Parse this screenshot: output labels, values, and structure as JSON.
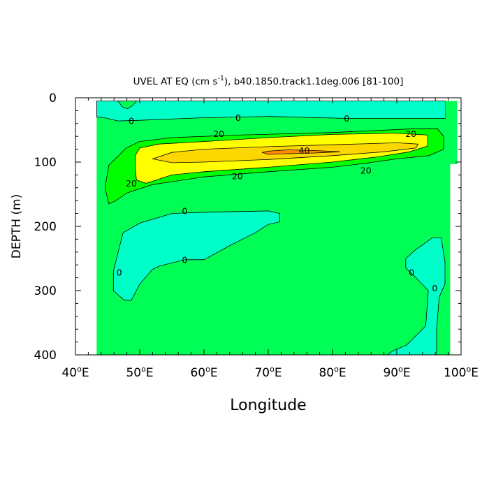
{
  "chart_data": {
    "type": "contour",
    "title_main": "UVEL AT EQ (cm s",
    "title_sup": "-1",
    "title_rest": "), b40.1850.track1.1deg.006 [81-100]",
    "xlabel": "Longitude",
    "ylabel": "DEPTH (m)",
    "xlim": [
      40,
      100
    ],
    "ylim": [
      400,
      0
    ],
    "x_ticks": [
      {
        "value": 40,
        "num": "40",
        "unit": "E"
      },
      {
        "value": 50,
        "num": "50",
        "unit": "E"
      },
      {
        "value": 60,
        "num": "60",
        "unit": "E"
      },
      {
        "value": 70,
        "num": "70",
        "unit": "E"
      },
      {
        "value": 80,
        "num": "80",
        "unit": "E"
      },
      {
        "value": 90,
        "num": "90",
        "unit": "E"
      },
      {
        "value": 100,
        "num": "100",
        "unit": "E"
      }
    ],
    "y_ticks": [
      {
        "value": 0,
        "label": "0"
      },
      {
        "value": 100,
        "label": "100"
      },
      {
        "value": 200,
        "label": "200"
      },
      {
        "value": 300,
        "label": "300"
      },
      {
        "value": 400,
        "label": "400"
      }
    ],
    "contour_levels": [
      -10,
      0,
      10,
      20,
      30,
      40
    ],
    "colors": {
      "negative": "#00ffc8",
      "level_0_10": "#00ff55",
      "level_10_20": "#00ff00",
      "level_20_30": "#ffff00",
      "level_30_40": "#ffd700",
      "level_40_plus": "#ff8c00",
      "land": "#ffffff"
    },
    "regions": [
      {
        "id": "base",
        "fill": "level_0_10",
        "points": [
          [
            43.3,
            5
          ],
          [
            99.4,
            5
          ],
          [
            99.4,
            103
          ],
          [
            98.3,
            103
          ],
          [
            98.3,
            400
          ],
          [
            43.3,
            400
          ]
        ]
      },
      {
        "id": "surface-westward",
        "fill": "negative",
        "points": [
          [
            43.3,
            5
          ],
          [
            97.6,
            5
          ],
          [
            97.6,
            32
          ],
          [
            90,
            32
          ],
          [
            82,
            32
          ],
          [
            70,
            29
          ],
          [
            60,
            31
          ],
          [
            50,
            35
          ],
          [
            46.6,
            36
          ],
          [
            44.5,
            31
          ],
          [
            43.3,
            30
          ]
        ]
      },
      {
        "id": "surface-green-notch",
        "fill": "level_0_10",
        "points": [
          [
            46.6,
            5
          ],
          [
            47.3,
            14
          ],
          [
            48.1,
            17
          ],
          [
            48.9,
            12
          ],
          [
            49.5,
            5
          ]
        ]
      },
      {
        "id": "east-surface-green",
        "fill": "level_0_10",
        "points": [
          [
            97.6,
            5
          ],
          [
            99.4,
            5
          ],
          [
            99.4,
            103
          ],
          [
            98.3,
            103
          ],
          [
            98.3,
            45
          ],
          [
            97.6,
            40
          ]
        ]
      },
      {
        "id": "jet-10",
        "fill": "level_10_20",
        "points": [
          [
            47.9,
            78
          ],
          [
            50,
            68
          ],
          [
            55,
            62
          ],
          [
            65,
            58
          ],
          [
            80,
            54
          ],
          [
            93,
            48
          ],
          [
            96.3,
            48
          ],
          [
            97.3,
            60
          ],
          [
            97.3,
            80
          ],
          [
            95,
            90
          ],
          [
            90,
            95
          ],
          [
            85,
            102
          ],
          [
            80,
            108
          ],
          [
            70,
            115
          ],
          [
            60,
            123
          ],
          [
            52,
            135
          ],
          [
            48,
            148
          ],
          [
            46.3,
            160
          ],
          [
            45.2,
            165
          ],
          [
            44.6,
            140
          ],
          [
            45.2,
            105
          ]
        ]
      },
      {
        "id": "jet-20",
        "fill": "level_20_30",
        "points": [
          [
            49.3,
            90
          ],
          [
            50,
            78
          ],
          [
            53,
            72
          ],
          [
            60,
            68
          ],
          [
            70,
            62
          ],
          [
            80,
            57
          ],
          [
            90,
            55
          ],
          [
            94.8,
            58
          ],
          [
            94.8,
            75
          ],
          [
            92,
            84
          ],
          [
            87,
            92
          ],
          [
            80,
            100
          ],
          [
            70,
            108
          ],
          [
            60,
            115
          ],
          [
            55,
            120
          ],
          [
            51,
            133
          ],
          [
            49.5,
            128
          ],
          [
            49.3,
            110
          ]
        ]
      },
      {
        "id": "jet-30",
        "fill": "level_30_40",
        "points": [
          [
            52,
            95
          ],
          [
            55,
            85
          ],
          [
            60,
            80
          ],
          [
            70,
            76
          ],
          [
            80,
            73
          ],
          [
            90,
            70
          ],
          [
            93.3,
            72
          ],
          [
            93,
            78
          ],
          [
            88,
            84
          ],
          [
            80,
            90
          ],
          [
            70,
            96
          ],
          [
            60,
            100
          ],
          [
            55,
            101
          ]
        ]
      },
      {
        "id": "jet-40",
        "fill": "level_40_plus",
        "points": [
          [
            69.1,
            85
          ],
          [
            70,
            83
          ],
          [
            73,
            81
          ],
          [
            77,
            82
          ],
          [
            81.2,
            84
          ],
          [
            77,
            86
          ],
          [
            73,
            87
          ],
          [
            70,
            88
          ]
        ]
      },
      {
        "id": "subsurface-west",
        "fill": "negative",
        "points": [
          [
            47.4,
            210
          ],
          [
            50,
            195
          ],
          [
            55,
            180
          ],
          [
            60,
            178
          ],
          [
            70,
            176
          ],
          [
            71.8,
            180
          ],
          [
            71.8,
            193
          ],
          [
            70,
            197
          ],
          [
            68,
            210
          ],
          [
            64,
            230
          ],
          [
            60,
            252
          ],
          [
            57,
            252
          ],
          [
            53,
            262
          ],
          [
            52,
            267
          ],
          [
            50,
            290
          ],
          [
            48.7,
            315
          ],
          [
            47.6,
            315
          ],
          [
            45.9,
            300
          ],
          [
            45.9,
            270
          ]
        ]
      },
      {
        "id": "subsurface-east",
        "fill": "negative",
        "points": [
          [
            91.4,
            250
          ],
          [
            93,
            236
          ],
          [
            95.5,
            218
          ],
          [
            96.9,
            218
          ],
          [
            97.5,
            255
          ],
          [
            97.5,
            290
          ],
          [
            96.6,
            310
          ],
          [
            96.2,
            360
          ],
          [
            96.2,
            400
          ],
          [
            88.5,
            400
          ],
          [
            89.5,
            393
          ],
          [
            91.5,
            385
          ],
          [
            93,
            370
          ],
          [
            94.5,
            355
          ],
          [
            94.9,
            300
          ],
          [
            93,
            280
          ],
          [
            91.4,
            265
          ]
        ]
      }
    ],
    "contour_labels": [
      {
        "x": 48.7,
        "y": 36,
        "text": "0"
      },
      {
        "x": 65.3,
        "y": 31,
        "text": "0"
      },
      {
        "x": 82.2,
        "y": 32,
        "text": "0"
      },
      {
        "x": 62.3,
        "y": 56,
        "text": "20"
      },
      {
        "x": 92.2,
        "y": 56,
        "text": "20"
      },
      {
        "x": 48.7,
        "y": 133,
        "text": "20"
      },
      {
        "x": 65.2,
        "y": 122,
        "text": "20"
      },
      {
        "x": 85.2,
        "y": 113,
        "text": "20"
      },
      {
        "x": 75.6,
        "y": 82,
        "text": "40"
      },
      {
        "x": 57,
        "y": 176,
        "text": "0"
      },
      {
        "x": 57,
        "y": 252,
        "text": "0"
      },
      {
        "x": 46.8,
        "y": 272,
        "text": "0"
      },
      {
        "x": 92.3,
        "y": 272,
        "text": "0"
      },
      {
        "x": 95.9,
        "y": 296,
        "text": "0"
      }
    ]
  }
}
